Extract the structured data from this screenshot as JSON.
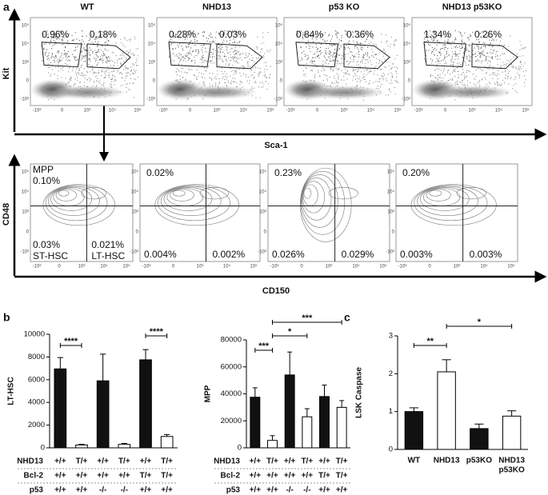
{
  "panel_labels": [
    "a",
    "b",
    "c"
  ],
  "flow": {
    "top_titles": [
      "WT",
      "NHD13",
      "p53 KO",
      "NHD13 p53KO"
    ],
    "y_axis": "Kit",
    "x_axis": "Sca-1",
    "top_gates": [
      [
        "0.96%",
        "0.18%"
      ],
      [
        "0.28%",
        "0.03%"
      ],
      [
        "0.84%",
        "0.36%"
      ],
      [
        "1.34%",
        "0.26%"
      ]
    ],
    "tick_labels": [
      "10⁵",
      "10⁴",
      "10³",
      "0",
      "-10³"
    ],
    "bottom_y_axis": "CD48",
    "bottom_x_axis": "CD150",
    "bottom_quadrants": [
      [
        "MPP",
        "0.10%",
        "0.03%",
        "ST-HSC",
        "0.021%",
        "LT-HSC"
      ],
      [
        "0.02%",
        "0.004%",
        "0.002%"
      ],
      [
        "0.23%",
        "0.026%",
        "0.029%"
      ],
      [
        "0.20%",
        "0.003%",
        "0.003%"
      ]
    ]
  },
  "chart_data": [
    {
      "type": "bar",
      "y_label": "LT-HSC",
      "values": [
        6950,
        250,
        5900,
        300,
        7750,
        1000
      ],
      "errors": [
        1000,
        60,
        2350,
        90,
        900,
        170
      ],
      "colors": [
        "#111111",
        "#ffffff",
        "#111111",
        "#ffffff",
        "#111111",
        "#ffffff"
      ],
      "ylim": [
        0,
        10000
      ],
      "yticks": [
        0,
        2000,
        4000,
        6000,
        8000,
        10000
      ],
      "significance": [
        "****",
        "****"
      ],
      "genotype_rows": [
        {
          "label": "NHD13",
          "values": [
            "+/+",
            "T/+",
            "+/+",
            "T/+",
            "+/+",
            "T/+"
          ]
        },
        {
          "label": "Bcl-2",
          "values": [
            "+/+",
            "+/+",
            "+/+",
            "+/+",
            "T/+",
            "T/+"
          ]
        },
        {
          "label": "p53",
          "values": [
            "+/+",
            "+/+",
            "-/-",
            "-/-",
            "+/+",
            "+/+"
          ]
        }
      ]
    },
    {
      "type": "bar",
      "y_label": "MPP",
      "values": [
        37500,
        5500,
        54000,
        23000,
        38000,
        30000
      ],
      "errors": [
        7000,
        3500,
        17000,
        6000,
        8500,
        5000
      ],
      "colors": [
        "#111111",
        "#ffffff",
        "#111111",
        "#ffffff",
        "#111111",
        "#ffffff"
      ],
      "ylim": [
        0,
        80000
      ],
      "yticks": [
        0,
        20000,
        40000,
        60000,
        80000
      ],
      "significance": [
        "***",
        "*",
        "***"
      ],
      "genotype_rows": [
        {
          "label": "NHD13",
          "values": [
            "+/+",
            "T/+",
            "+/+",
            "T/+",
            "+/+",
            "T/+"
          ]
        },
        {
          "label": "Bcl-2",
          "values": [
            "+/+",
            "+/+",
            "+/+",
            "+/+",
            "T/+",
            "T/+"
          ]
        },
        {
          "label": "p53",
          "values": [
            "+/+",
            "+/+",
            "-/-",
            "-/-",
            "+/+",
            "+/+"
          ]
        }
      ]
    },
    {
      "type": "bar",
      "y_label": "LSK Caspase",
      "categories": [
        "WT",
        "NHD13",
        "p53KO",
        [
          "NHD13",
          "p53KO"
        ]
      ],
      "values": [
        1.0,
        2.05,
        0.55,
        0.88
      ],
      "errors": [
        0.1,
        0.32,
        0.12,
        0.14
      ],
      "colors": [
        "#111111",
        "#ffffff",
        "#111111",
        "#ffffff"
      ],
      "ylim": [
        0,
        3
      ],
      "yticks": [
        0,
        1,
        2,
        3
      ],
      "significance": [
        "**",
        "*"
      ]
    }
  ]
}
